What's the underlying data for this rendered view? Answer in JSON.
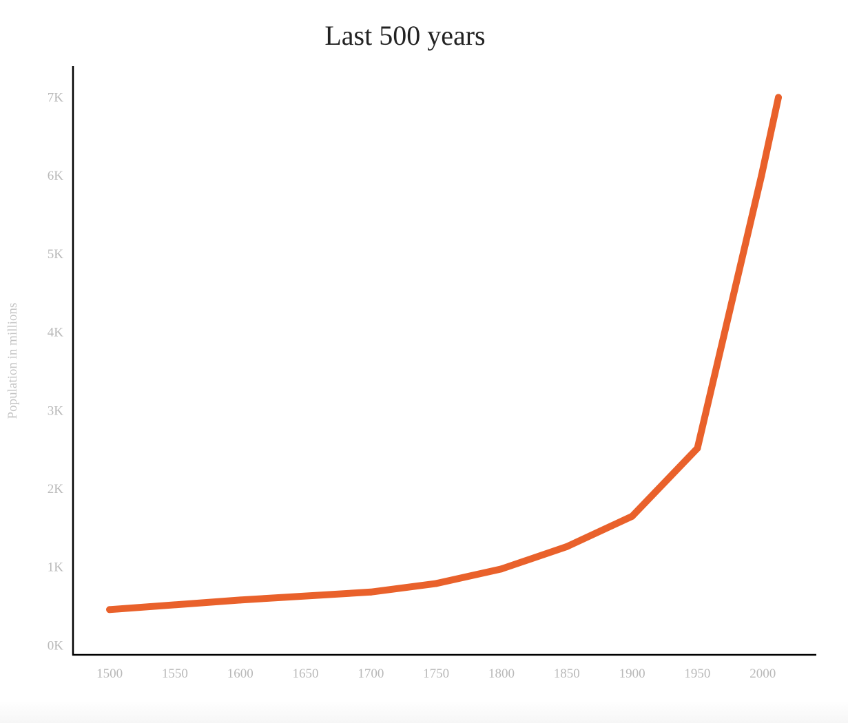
{
  "chart_data": {
    "type": "line",
    "title": "Last 500 years",
    "xlabel": "",
    "ylabel": "Population in millions",
    "x": [
      1500,
      1600,
      1700,
      1750,
      1800,
      1850,
      1900,
      1950,
      1999,
      2012
    ],
    "y": [
      458,
      580,
      682,
      791,
      978,
      1262,
      1650,
      2519,
      6000,
      7000
    ],
    "xticks": [
      "1500",
      "1550",
      "1600",
      "1650",
      "1700",
      "1750",
      "1800",
      "1850",
      "1900",
      "1950",
      "2000"
    ],
    "xtick_values": [
      1500,
      1550,
      1600,
      1650,
      1700,
      1750,
      1800,
      1850,
      1900,
      1950,
      2000
    ],
    "yticks": [
      "0K",
      "1K",
      "2K",
      "3K",
      "4K",
      "5K",
      "6K",
      "7K"
    ],
    "ytick_values": [
      0,
      1000,
      2000,
      3000,
      4000,
      5000,
      6000,
      7000
    ],
    "xlim": [
      1472,
      2041
    ],
    "ylim": [
      -120,
      7400
    ],
    "grid": false,
    "line_color": "#e9612b"
  }
}
